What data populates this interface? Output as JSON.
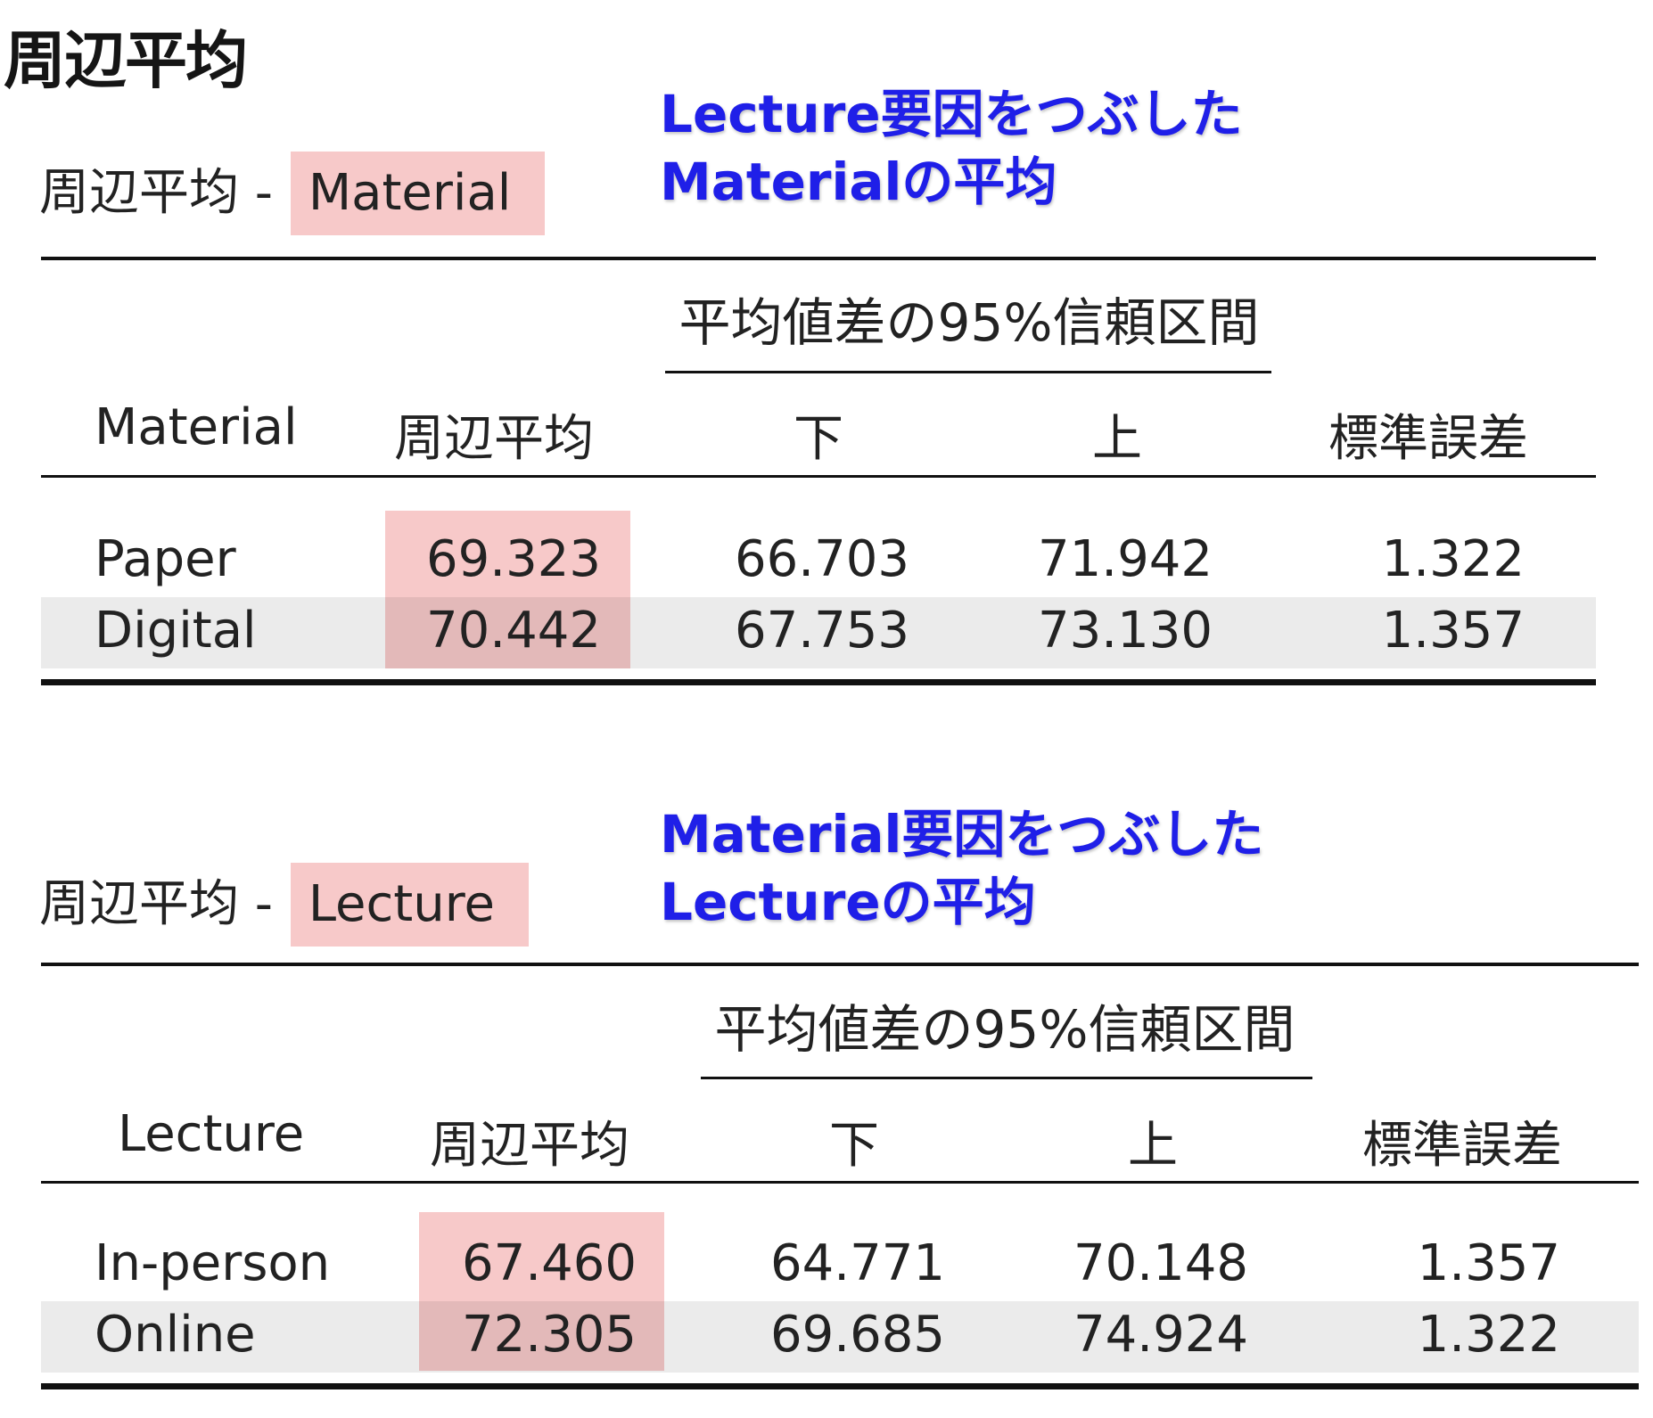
{
  "page_title": "周辺平均",
  "sections": [
    {
      "subtitle_prefix": "周辺平均 - ",
      "subtitle_factor": "Material",
      "note_lines": [
        "Lecture要因をつぶした",
        "Materialの平均"
      ],
      "ci_header": "平均値差の95%信頼区間",
      "columns": [
        "Material",
        "周辺平均",
        "下",
        "上",
        "標準誤差"
      ],
      "rows": [
        {
          "level": "Paper",
          "mean": "69.323",
          "lower": "66.703",
          "upper": "71.942",
          "se": "1.322"
        },
        {
          "level": "Digital",
          "mean": "70.442",
          "lower": "67.753",
          "upper": "73.130",
          "se": "1.357"
        }
      ]
    },
    {
      "subtitle_prefix": "周辺平均 - ",
      "subtitle_factor": "Lecture",
      "note_lines": [
        "Material要因をつぶした",
        "Lectureの平均"
      ],
      "ci_header": "平均値差の95%信頼区間",
      "columns": [
        "Lecture",
        "周辺平均",
        "下",
        "上",
        "標準誤差"
      ],
      "rows": [
        {
          "level": "In-person",
          "mean": "67.460",
          "lower": "64.771",
          "upper": "70.148",
          "se": "1.357"
        },
        {
          "level": "Online",
          "mean": "72.305",
          "lower": "69.685",
          "upper": "74.924",
          "se": "1.322"
        }
      ]
    }
  ],
  "colors": {
    "highlight": "#f7c9c9",
    "note": "#1f1fe8",
    "stripe": "#ebebeb"
  }
}
